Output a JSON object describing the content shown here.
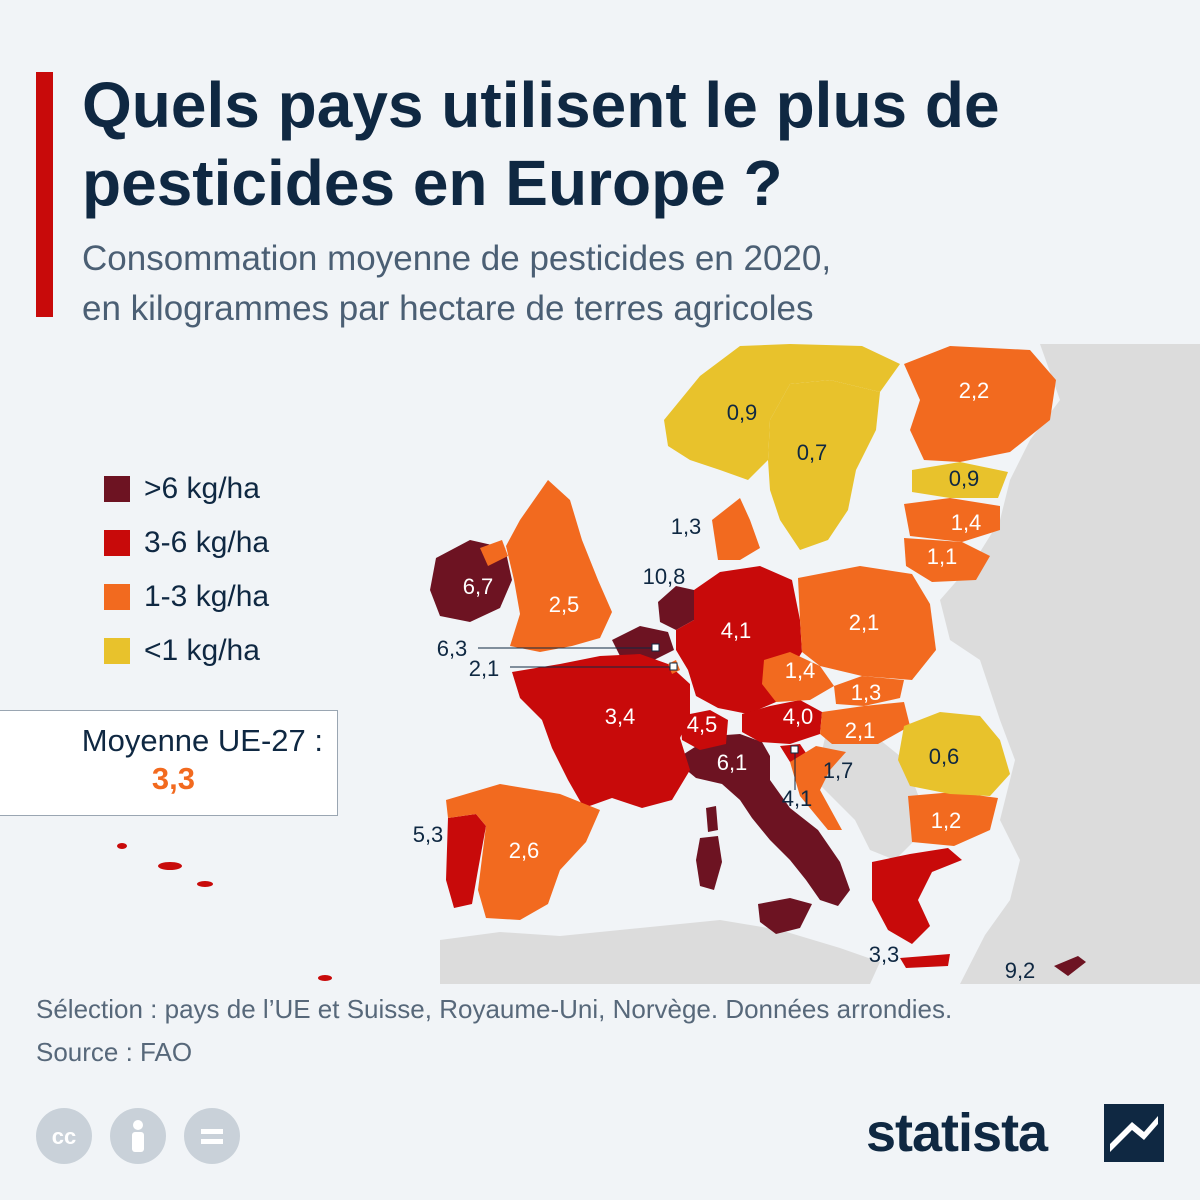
{
  "title": "Quels pays utilisent le plus de pesticides en Europe ?",
  "subtitle_line1": "Consommation moyenne de pesticides en 2020,",
  "subtitle_line2": "en kilogrammes par hectare de terres agricoles",
  "legend": [
    {
      "label": ">6 kg/ha",
      "color": "#6d1322"
    },
    {
      "label": "3-6 kg/ha",
      "color": "#c80a0a"
    },
    {
      "label": "1-3 kg/ha",
      "color": "#f26a1f"
    },
    {
      "label": "<1 kg/ha",
      "color": "#e8c22c"
    }
  ],
  "eu_average": {
    "label": "Moyenne UE-27 :",
    "value": "3,3"
  },
  "countries": {
    "norway": "0,9",
    "sweden": "0,7",
    "finland": "2,2",
    "estonia": "0,9",
    "latvia": "1,4",
    "lithuania": "1,1",
    "denmark": "1,3",
    "netherlands": "10,8",
    "ireland": "6,7",
    "uk": "2,5",
    "belgium": "6,3",
    "luxembourg": "2,1",
    "germany": "4,1",
    "poland": "2,1",
    "czechia": "1,4",
    "slovakia": "1,3",
    "hungary": "2,1",
    "austria": "4,0",
    "switzerland": "4,5",
    "france": "3,4",
    "italy": "6,1",
    "slovenia": "4,1",
    "croatia": "1,7",
    "romania": "0,6",
    "bulgaria": "1,2",
    "greece": "3,3",
    "cyprus": "9,2",
    "portugal": "5,3",
    "spain": "2,6"
  },
  "footnote": "Sélection : pays de l’UE et Suisse, Royaume-Uni, Norvège. Données arrondies.",
  "source": "Source : FAO",
  "license_icons": [
    "cc-icon",
    "by-icon",
    "nd-icon"
  ],
  "brand": "statista"
}
